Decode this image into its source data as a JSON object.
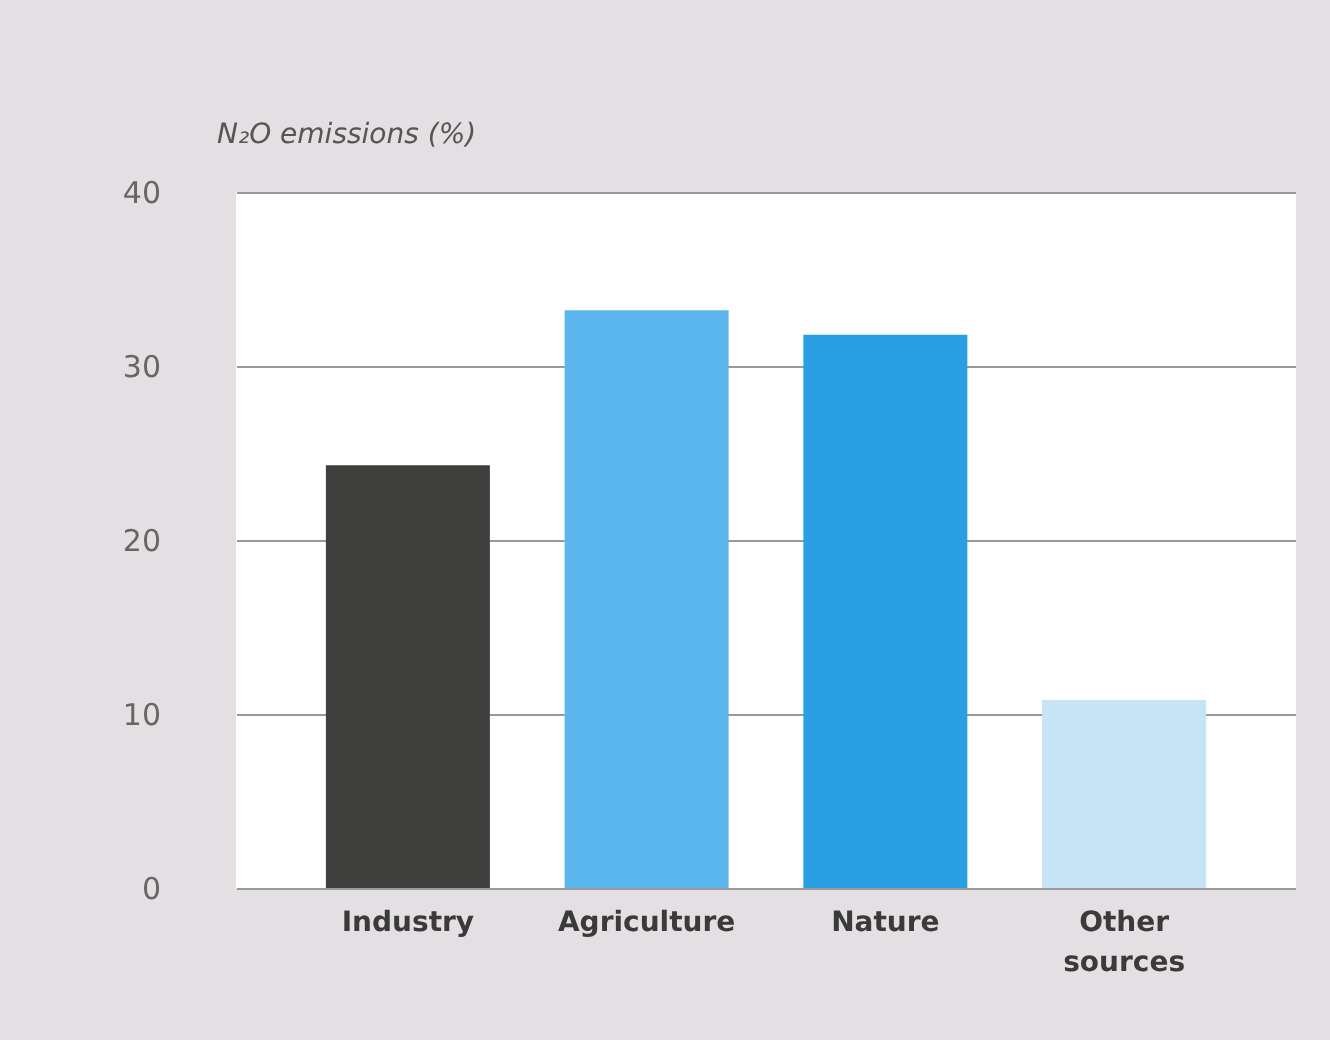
{
  "chart_data": {
    "type": "bar",
    "ylabel": "N₂O emissions (%)",
    "categories": [
      "Industry",
      "Agriculture",
      "Nature",
      "Other sources"
    ],
    "values": [
      24.3,
      33.2,
      31.8,
      10.8
    ],
    "colors": [
      "#3f3f3d",
      "#5ab6ec",
      "#2a9fe4",
      "#c6e4f6"
    ],
    "ylim": [
      0,
      40
    ],
    "yticks": [
      0,
      10,
      20,
      30,
      40
    ],
    "grid": "y"
  }
}
